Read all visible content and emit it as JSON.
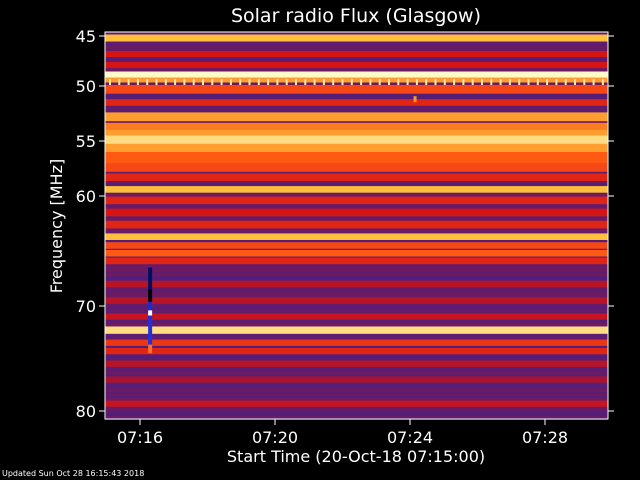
{
  "chart_data": {
    "type": "heatmap",
    "title": "Solar radio Flux (Glasgow)",
    "xlabel": "Start Time (20-Oct-18 07:15:00)",
    "ylabel": "Frequency [MHz]",
    "x_ticks": [
      "07:16",
      "07:20",
      "07:24",
      "07:28"
    ],
    "x_tick_minutes": [
      1,
      5,
      9,
      13
    ],
    "xlim_minutes": [
      0,
      15
    ],
    "y_ticks": [
      45,
      50,
      55,
      60,
      70,
      80
    ],
    "ylim": [
      45,
      80
    ],
    "grid": false,
    "background_color": "#4a1f84",
    "bands": [
      {
        "freq": 45.2,
        "width": 0.35,
        "intensity": 0.9
      },
      {
        "freq": 46.8,
        "width": 0.3,
        "intensity": 0.55
      },
      {
        "freq": 47.9,
        "width": 0.3,
        "intensity": 0.55
      },
      {
        "freq": 48.9,
        "width": 0.35,
        "intensity": 1.0
      },
      {
        "freq": 49.4,
        "width": 0.25,
        "intensity": 0.85
      },
      {
        "freq": 50.3,
        "width": 0.4,
        "intensity": 0.7
      },
      {
        "freq": 51.5,
        "width": 0.3,
        "intensity": 0.6
      },
      {
        "freq": 52.8,
        "width": 0.4,
        "intensity": 0.85
      },
      {
        "freq": 53.7,
        "width": 0.35,
        "intensity": 0.8
      },
      {
        "freq": 54.3,
        "width": 0.3,
        "intensity": 0.85
      },
      {
        "freq": 54.9,
        "width": 0.4,
        "intensity": 0.95
      },
      {
        "freq": 55.7,
        "width": 0.45,
        "intensity": 0.85
      },
      {
        "freq": 56.5,
        "width": 0.5,
        "intensity": 0.75
      },
      {
        "freq": 57.4,
        "width": 0.4,
        "intensity": 0.7
      },
      {
        "freq": 58.3,
        "width": 0.35,
        "intensity": 0.6
      },
      {
        "freq": 59.4,
        "width": 0.3,
        "intensity": 0.9
      },
      {
        "freq": 60.4,
        "width": 0.35,
        "intensity": 0.6
      },
      {
        "freq": 61.5,
        "width": 0.35,
        "intensity": 0.55
      },
      {
        "freq": 62.6,
        "width": 0.35,
        "intensity": 0.6
      },
      {
        "freq": 63.7,
        "width": 0.3,
        "intensity": 0.9
      },
      {
        "freq": 64.5,
        "width": 0.3,
        "intensity": 0.7
      },
      {
        "freq": 65.2,
        "width": 0.3,
        "intensity": 0.75
      },
      {
        "freq": 65.9,
        "width": 0.3,
        "intensity": 0.6
      },
      {
        "freq": 68.0,
        "width": 0.3,
        "intensity": 0.45
      },
      {
        "freq": 69.5,
        "width": 0.3,
        "intensity": 0.45
      },
      {
        "freq": 71.0,
        "width": 0.3,
        "intensity": 0.5
      },
      {
        "freq": 72.3,
        "width": 0.35,
        "intensity": 0.95
      },
      {
        "freq": 73.5,
        "width": 0.3,
        "intensity": 0.65
      },
      {
        "freq": 74.3,
        "width": 0.3,
        "intensity": 0.6
      },
      {
        "freq": 75.5,
        "width": 0.3,
        "intensity": 0.45
      },
      {
        "freq": 77.0,
        "width": 0.3,
        "intensity": 0.4
      },
      {
        "freq": 79.3,
        "width": 0.3,
        "intensity": 0.5
      }
    ],
    "interference_column": {
      "minute": 1.3,
      "freq_start": 66.5,
      "freq_end": 74.5
    },
    "spot": {
      "minute": 9.15,
      "freq": 51.2
    }
  },
  "footer": {
    "updated": "Updated Sun Oct 28 16:15:43 2018"
  }
}
